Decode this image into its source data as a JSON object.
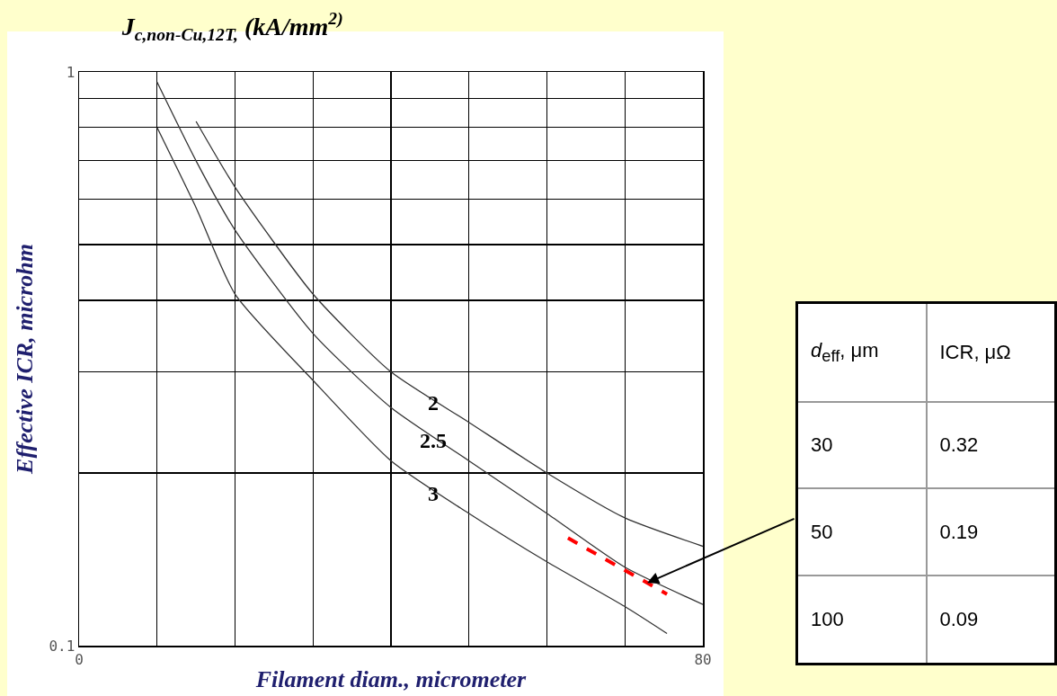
{
  "chart_data": [
    {
      "type": "line",
      "title": "J$_{c,non-Cu,12T,}$ (kA/mm$^{2)}$",
      "xlabel": "Filament diam., micrometer",
      "ylabel": "Effective ICR, microhm",
      "log": "y",
      "grid": true,
      "legend": false,
      "marker": "none",
      "line_style": "solid",
      "xlim": [
        0,
        80
      ],
      "xticks": [
        0,
        {
          "value": 10,
          "label": null
        },
        {
          "value": 20,
          "label": null
        },
        {
          "value": 30,
          "label": null
        },
        {
          "value": 40,
          "label": null
        },
        {
          "value": 50,
          "label": null
        },
        {
          "value": 60,
          "label": null
        },
        {
          "value": 70,
          "label": null
        },
        80
      ],
      "ylim": [
        0.1,
        1
      ],
      "yticks": [
        0.1,
        {
          "value": 0.2,
          "label": null
        },
        {
          "value": 0.3,
          "label": null
        },
        {
          "value": 0.4,
          "label": null
        },
        {
          "value": 0.5,
          "label": null
        },
        {
          "value": 0.6,
          "label": null
        },
        {
          "value": 0.7,
          "label": null
        },
        {
          "value": 0.8,
          "label": null
        },
        {
          "value": 0.9,
          "label": null
        },
        1
      ],
      "series": [
        {
          "name": "2",
          "color": "#333333",
          "x": [
            15,
            20,
            30,
            40,
            50,
            60,
            70,
            80
          ],
          "values": [
            0.82,
            0.63,
            0.41,
            0.3,
            0.245,
            0.2,
            0.167,
            0.149
          ]
        },
        {
          "name": "2.5",
          "color": "#333333",
          "x": [
            10,
            15,
            20,
            30,
            40,
            50,
            60,
            70,
            80
          ],
          "values": [
            0.96,
            0.7,
            0.53,
            0.35,
            0.26,
            0.21,
            0.17,
            0.137,
            0.118
          ]
        },
        {
          "name": "3",
          "color": "#333333",
          "x": [
            10,
            15,
            20,
            30,
            40,
            50,
            60,
            70,
            75.4
          ],
          "values": [
            0.8,
            0.58,
            0.41,
            0.29,
            0.21,
            0.17,
            0.14,
            0.117,
            0.105
          ]
        },
        {
          "color": "#ff0000",
          "line_style": "dashed",
          "x": [
            62.7,
            75.4
          ],
          "values": [
            0.154,
            0.123
          ]
        }
      ]
    },
    {
      "type": "other",
      "annotations": [
        "d$_{eff}$, μm",
        "ICR, μΩ",
        "30",
        "0.32",
        "50",
        "0.19",
        "100",
        "0.09"
      ]
    }
  ]
}
